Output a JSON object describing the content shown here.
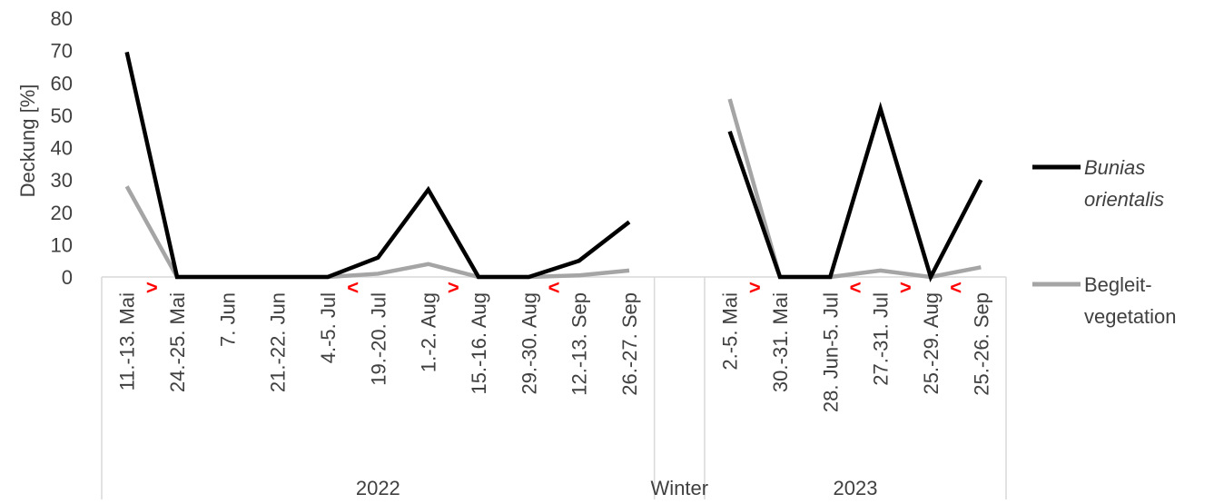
{
  "chart_data": {
    "type": "line",
    "ylabel": "Deckung [%]",
    "ylim": [
      0,
      80
    ],
    "yticks": [
      "0",
      "10",
      "20",
      "30",
      "40",
      "50",
      "60",
      "70",
      "80"
    ],
    "categories": [
      "11.-13. Mai",
      "24.-25. Mai",
      "7. Jun",
      "21.-22. Jun",
      "4.-5. Jul",
      "19.-20. Jul",
      "1.-2. Aug",
      "15.-16. Aug",
      "29.-30. Aug",
      "12.-13. Sep",
      "26.-27. Sep",
      "",
      "2.-5. Mai",
      "30.-31. Mai",
      "28. Jun-5. Jul",
      "27.-31. Jul",
      "25.-29. Aug",
      "25.-26. Sep"
    ],
    "groups": [
      {
        "label": "2022"
      },
      {
        "label": "Winter"
      },
      {
        "label": "2023"
      }
    ],
    "series": [
      {
        "name": "Bunias orientalis",
        "name_line1": "Bunias",
        "name_line2": "orientalis",
        "color": "#000000",
        "values": [
          69.5,
          0,
          0,
          0,
          0,
          6,
          27,
          0,
          0,
          5,
          17,
          null,
          45,
          0,
          0,
          52,
          0,
          30
        ]
      },
      {
        "name": "Begleit-vegetation",
        "name_line1": "Begleit-",
        "name_line2": "vegetation",
        "color": "#a5a5a5",
        "values": [
          28,
          0,
          0,
          0,
          0,
          1,
          4,
          0,
          0,
          0.5,
          2,
          null,
          55,
          0,
          0,
          2,
          0,
          3
        ]
      }
    ],
    "markers": [
      {
        "after_index": 0,
        "symbol": ">"
      },
      {
        "after_index": 4,
        "symbol": "<"
      },
      {
        "after_index": 6,
        "symbol": ">"
      },
      {
        "after_index": 8,
        "symbol": "<"
      },
      {
        "after_index": 12,
        "symbol": ">"
      },
      {
        "after_index": 14,
        "symbol": "<"
      },
      {
        "after_index": 15,
        "symbol": ">"
      },
      {
        "after_index": 16,
        "symbol": "<"
      }
    ],
    "grid": false,
    "legend_position": "right",
    "marker_color": "#ff0000"
  }
}
